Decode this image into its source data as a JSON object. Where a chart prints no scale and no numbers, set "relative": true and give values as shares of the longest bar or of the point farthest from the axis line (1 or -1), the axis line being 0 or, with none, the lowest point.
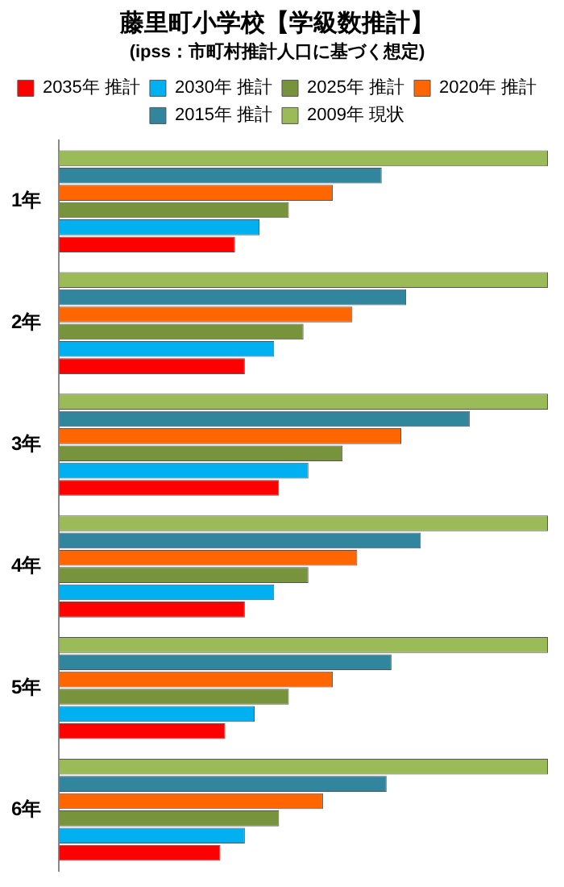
{
  "chart_data": {
    "type": "bar",
    "orientation": "horizontal",
    "relative": true,
    "title": "藤里町小学校【学級数推計】",
    "subtitle": "(ipss：市町村推計人口に基づく想定)",
    "categories": [
      "1年",
      "2年",
      "3年",
      "4年",
      "5年",
      "6年"
    ],
    "legend": "top",
    "grid": false,
    "series": [
      {
        "name": "2035年 推計",
        "color": "#ff0000",
        "values": [
          0.36,
          0.38,
          0.45,
          0.38,
          0.34,
          0.33
        ]
      },
      {
        "name": "2030年 推計",
        "color": "#00b0f0",
        "values": [
          0.41,
          0.44,
          0.51,
          0.44,
          0.4,
          0.38
        ]
      },
      {
        "name": "2025年 推計",
        "color": "#77933c",
        "values": [
          0.47,
          0.5,
          0.58,
          0.51,
          0.47,
          0.45
        ]
      },
      {
        "name": "2020年 推計",
        "color": "#ff6600",
        "values": [
          0.56,
          0.6,
          0.7,
          0.61,
          0.56,
          0.54
        ]
      },
      {
        "name": "2015年 推計",
        "color": "#31859c",
        "values": [
          0.66,
          0.71,
          0.84,
          0.74,
          0.68,
          0.67
        ]
      },
      {
        "name": "2009年 現状",
        "color": "#9bbb59",
        "values": [
          1,
          1,
          1,
          1,
          1,
          1
        ]
      }
    ]
  }
}
